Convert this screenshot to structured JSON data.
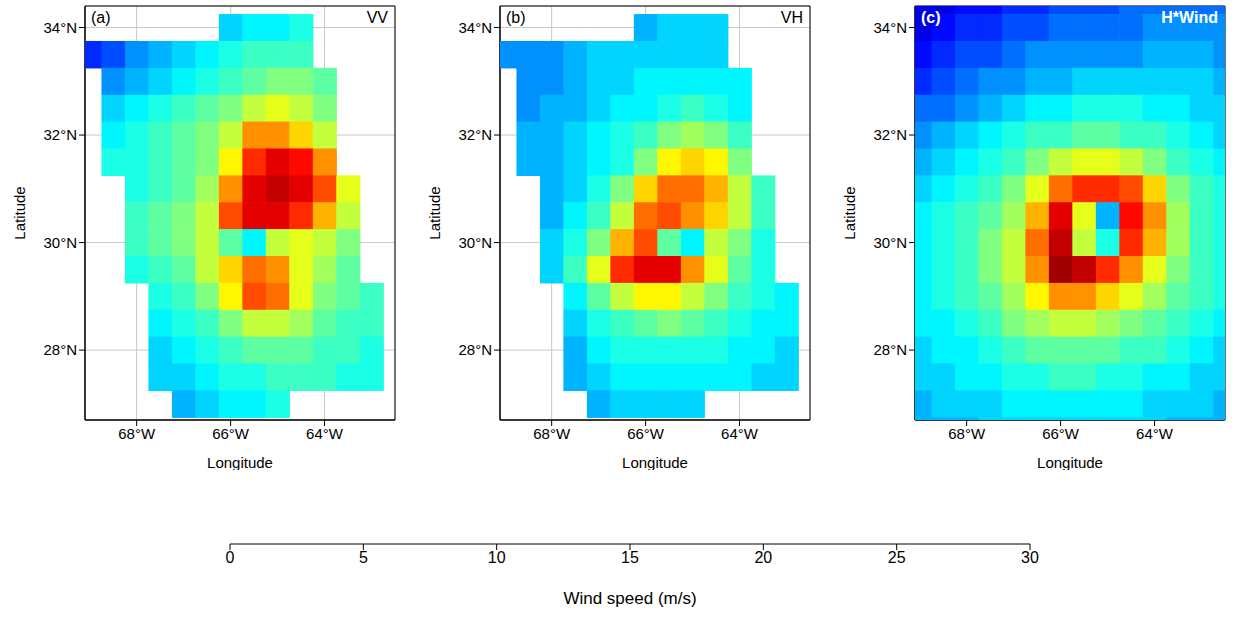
{
  "chart_data": [
    {
      "type": "heatmap",
      "annotation": "(a)",
      "title": "VV",
      "xlabel": "Longitude",
      "ylabel": "Latitude",
      "xlim": [
        -69.1,
        -62.5
      ],
      "ylim": [
        26.7,
        34.4
      ],
      "xticks": [
        {
          "value": -68,
          "label": "68°W"
        },
        {
          "value": -66,
          "label": "66°W"
        },
        {
          "value": -64,
          "label": "64°W"
        }
      ],
      "yticks": [
        {
          "value": 28,
          "label": "28°N"
        },
        {
          "value": 30,
          "label": "30°N"
        },
        {
          "value": 32,
          "label": "32°N"
        },
        {
          "value": 34,
          "label": "34°N"
        }
      ],
      "grid": true,
      "x": [
        -69,
        -68.5,
        -68,
        -67.5,
        -67,
        -66.5,
        -66,
        -65.5,
        -65,
        -64.5,
        -64,
        -63.5,
        -63,
        -62.5
      ],
      "y": [
        34.5,
        34,
        33.5,
        33,
        32.5,
        32,
        31.5,
        31,
        30.5,
        30,
        29.5,
        29,
        28.5,
        28,
        27.5,
        27,
        26.5
      ],
      "cells": [
        [
          null,
          null,
          null,
          null,
          null,
          null,
          null,
          null,
          null,
          null,
          null,
          null,
          null,
          null
        ],
        [
          null,
          null,
          null,
          null,
          null,
          null,
          10,
          11,
          11,
          12,
          null,
          null,
          null,
          null
        ],
        [
          5,
          6,
          8,
          9,
          10,
          11,
          12,
          13,
          13,
          13,
          null,
          null,
          null,
          null
        ],
        [
          null,
          8,
          9,
          10,
          11,
          12,
          13,
          14,
          15,
          15,
          14,
          null,
          null,
          null
        ],
        [
          null,
          10,
          11,
          12,
          13,
          14,
          15,
          17,
          18,
          17,
          15,
          null,
          null,
          null
        ],
        [
          null,
          11,
          12,
          13,
          14,
          15,
          17,
          22,
          22,
          20,
          17,
          null,
          null,
          null
        ],
        [
          null,
          12,
          12,
          13,
          14,
          15,
          19,
          25,
          27,
          26,
          22,
          null,
          null,
          null
        ],
        [
          null,
          null,
          12,
          13,
          14,
          16,
          22,
          27,
          28,
          27,
          24,
          18,
          null,
          null
        ],
        [
          null,
          null,
          13,
          14,
          15,
          17,
          24,
          27,
          27,
          25,
          21,
          17,
          null,
          null
        ],
        [
          null,
          null,
          13,
          14,
          15,
          17,
          14,
          11,
          17,
          18,
          17,
          15,
          null,
          null
        ],
        [
          null,
          null,
          12,
          13,
          14,
          17,
          20,
          23,
          22,
          18,
          16,
          14,
          null,
          null
        ],
        [
          null,
          null,
          null,
          12,
          13,
          15,
          19,
          24,
          23,
          18,
          15,
          14,
          13,
          null
        ],
        [
          null,
          null,
          null,
          11,
          12,
          13,
          15,
          17,
          17,
          16,
          14,
          13,
          13,
          null
        ],
        [
          null,
          null,
          null,
          10,
          11,
          12,
          13,
          14,
          14,
          14,
          13,
          13,
          12,
          null
        ],
        [
          null,
          null,
          null,
          10,
          10,
          11,
          12,
          12,
          13,
          13,
          13,
          12,
          12,
          null
        ],
        [
          null,
          null,
          null,
          null,
          9,
          10,
          11,
          11,
          12,
          null,
          null,
          null,
          null,
          null
        ],
        [
          null,
          null,
          null,
          null,
          null,
          null,
          null,
          null,
          null,
          null,
          null,
          null,
          null,
          null
        ]
      ]
    },
    {
      "type": "heatmap",
      "annotation": "(b)",
      "title": "VH",
      "xlabel": "Longitude",
      "ylabel": "Latitude",
      "xlim": [
        -69.1,
        -62.5
      ],
      "ylim": [
        26.7,
        34.4
      ],
      "xticks": [
        {
          "value": -68,
          "label": "68°W"
        },
        {
          "value": -66,
          "label": "66°W"
        },
        {
          "value": -64,
          "label": "64°W"
        }
      ],
      "yticks": [
        {
          "value": 28,
          "label": "28°N"
        },
        {
          "value": 30,
          "label": "30°N"
        },
        {
          "value": 32,
          "label": "32°N"
        },
        {
          "value": 34,
          "label": "34°N"
        }
      ],
      "grid": true,
      "x": [
        -69,
        -68.5,
        -68,
        -67.5,
        -67,
        -66.5,
        -66,
        -65.5,
        -65,
        -64.5,
        -64,
        -63.5,
        -63,
        -62.5
      ],
      "y": [
        34.5,
        34,
        33.5,
        33,
        32.5,
        32,
        31.5,
        31,
        30.5,
        30,
        29.5,
        29,
        28.5,
        28,
        27.5,
        27,
        26.5
      ],
      "cells": [
        [
          null,
          null,
          null,
          null,
          null,
          null,
          null,
          null,
          null,
          null,
          null,
          null,
          null,
          null
        ],
        [
          null,
          null,
          null,
          null,
          null,
          null,
          9,
          10,
          10,
          10,
          null,
          null,
          null,
          null
        ],
        [
          8,
          8,
          8,
          9,
          10,
          10,
          10,
          10,
          10,
          10,
          null,
          null,
          null,
          null
        ],
        [
          null,
          8,
          8,
          9,
          10,
          10,
          11,
          11,
          11,
          11,
          11,
          null,
          null,
          null
        ],
        [
          null,
          8,
          9,
          9,
          10,
          11,
          11,
          12,
          13,
          12,
          11,
          null,
          null,
          null
        ],
        [
          null,
          9,
          9,
          10,
          11,
          12,
          13,
          15,
          16,
          15,
          13,
          null,
          null,
          null
        ],
        [
          null,
          9,
          9,
          10,
          11,
          12,
          15,
          19,
          20,
          19,
          15,
          null,
          null,
          null
        ],
        [
          null,
          null,
          9,
          10,
          12,
          15,
          20,
          23,
          23,
          21,
          17,
          13,
          null,
          null
        ],
        [
          null,
          null,
          9,
          11,
          13,
          17,
          23,
          24,
          22,
          20,
          17,
          13,
          null,
          null
        ],
        [
          null,
          null,
          10,
          12,
          15,
          21,
          24,
          14,
          11,
          17,
          15,
          12,
          null,
          null
        ],
        [
          null,
          null,
          10,
          13,
          18,
          25,
          27,
          27,
          22,
          18,
          14,
          12,
          null,
          null
        ],
        [
          null,
          null,
          null,
          11,
          14,
          17,
          19,
          19,
          17,
          15,
          13,
          12,
          11,
          null
        ],
        [
          null,
          null,
          null,
          10,
          12,
          13,
          14,
          15,
          14,
          13,
          12,
          11,
          11,
          null
        ],
        [
          null,
          null,
          null,
          9,
          11,
          12,
          12,
          12,
          12,
          12,
          11,
          11,
          10,
          null
        ],
        [
          null,
          null,
          null,
          9,
          10,
          11,
          11,
          11,
          11,
          11,
          11,
          10,
          10,
          null
        ],
        [
          null,
          null,
          null,
          null,
          9,
          10,
          10,
          10,
          10,
          null,
          null,
          null,
          null,
          null
        ],
        [
          null,
          null,
          null,
          null,
          null,
          null,
          null,
          null,
          null,
          null,
          null,
          null,
          null,
          null
        ]
      ]
    },
    {
      "type": "heatmap",
      "annotation": "(c)",
      "title": "H*Wind",
      "xlabel": "Longitude",
      "ylabel": "Latitude",
      "xlim": [
        -69.1,
        -62.5
      ],
      "ylim": [
        26.7,
        34.4
      ],
      "xticks": [
        {
          "value": -68,
          "label": "68°W"
        },
        {
          "value": -66,
          "label": "66°W"
        },
        {
          "value": -64,
          "label": "64°W"
        }
      ],
      "yticks": [
        {
          "value": 28,
          "label": "28°N"
        },
        {
          "value": 30,
          "label": "30°N"
        },
        {
          "value": 32,
          "label": "32°N"
        },
        {
          "value": 34,
          "label": "34°N"
        }
      ],
      "grid": true,
      "x": [
        -69,
        -68.5,
        -68,
        -67.5,
        -67,
        -66.5,
        -66,
        -65.5,
        -65,
        -64.5,
        -64,
        -63.5,
        -63,
        -62.5
      ],
      "y": [
        34.5,
        34,
        33.5,
        33,
        32.5,
        32,
        31.5,
        31,
        30.5,
        30,
        29.5,
        29,
        28.5,
        28,
        27.5,
        27,
        26.5
      ],
      "cells": [
        [
          3,
          3,
          4,
          4,
          5,
          5,
          6,
          6,
          6,
          7,
          7,
          7,
          7,
          7
        ],
        [
          3,
          4,
          5,
          5,
          6,
          6,
          7,
          7,
          7,
          7,
          8,
          8,
          8,
          8
        ],
        [
          4,
          5,
          6,
          6,
          7,
          8,
          8,
          8,
          8,
          8,
          9,
          9,
          9,
          8
        ],
        [
          5,
          6,
          7,
          8,
          8,
          9,
          9,
          10,
          10,
          10,
          10,
          10,
          10,
          9
        ],
        [
          7,
          7,
          8,
          9,
          10,
          11,
          11,
          12,
          12,
          12,
          11,
          11,
          10,
          10
        ],
        [
          8,
          9,
          10,
          11,
          12,
          13,
          13,
          14,
          14,
          13,
          13,
          12,
          11,
          10
        ],
        [
          9,
          10,
          11,
          12,
          13,
          15,
          17,
          18,
          18,
          17,
          15,
          13,
          12,
          11
        ],
        [
          10,
          11,
          12,
          13,
          15,
          18,
          23,
          25,
          25,
          24,
          20,
          15,
          13,
          12
        ],
        [
          11,
          12,
          13,
          14,
          16,
          21,
          27,
          18,
          9,
          26,
          22,
          16,
          13,
          12
        ],
        [
          11,
          12,
          13,
          15,
          17,
          23,
          28,
          17,
          12,
          25,
          21,
          16,
          13,
          12
        ],
        [
          11,
          12,
          13,
          15,
          17,
          22,
          29,
          28,
          25,
          22,
          18,
          15,
          13,
          12
        ],
        [
          11,
          12,
          13,
          14,
          16,
          19,
          22,
          22,
          20,
          18,
          16,
          14,
          13,
          12
        ],
        [
          11,
          11,
          12,
          13,
          15,
          16,
          17,
          17,
          16,
          15,
          14,
          13,
          12,
          11
        ],
        [
          10,
          11,
          11,
          12,
          13,
          14,
          14,
          14,
          14,
          13,
          13,
          12,
          11,
          10
        ],
        [
          10,
          10,
          11,
          11,
          12,
          12,
          13,
          13,
          12,
          12,
          11,
          11,
          10,
          10
        ],
        [
          9,
          10,
          10,
          10,
          11,
          11,
          11,
          11,
          11,
          11,
          10,
          10,
          10,
          9
        ],
        [
          9,
          9,
          9,
          10,
          10,
          10,
          10,
          10,
          10,
          10,
          10,
          9,
          9,
          9
        ]
      ]
    }
  ],
  "colorbar": {
    "range": [
      0,
      30
    ],
    "ticks": [
      0,
      5,
      10,
      15,
      20,
      25,
      30
    ],
    "label": "Wind speed (m/s)"
  }
}
